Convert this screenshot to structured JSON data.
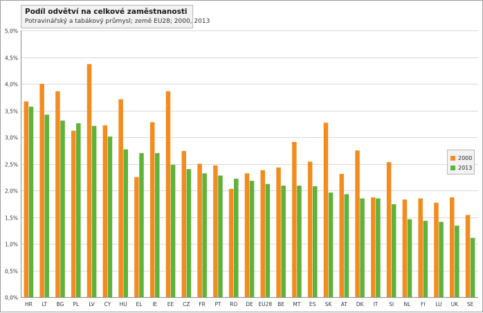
{
  "chart_data": {
    "type": "bar",
    "title": "Podíl odvětví na celkové zaměstnanosti",
    "subtitle": "Potravinářský a tabákový průmysl; země EU28; 2000, 2013",
    "categories": [
      "HR",
      "LT",
      "BG",
      "PL",
      "LV",
      "CY",
      "HU",
      "EL",
      "IE",
      "EE",
      "CZ",
      "FR",
      "PT",
      "RO",
      "DE",
      "EU28",
      "BE",
      "MT",
      "ES",
      "SK",
      "AT",
      "DK",
      "IT",
      "SI",
      "NL",
      "FI",
      "LU",
      "UK",
      "SE"
    ],
    "series": [
      {
        "name": "2000",
        "color": "#f28c1f",
        "values": [
          3.67,
          4.0,
          3.86,
          3.12,
          4.37,
          3.22,
          3.71,
          2.25,
          3.28,
          3.86,
          2.74,
          2.5,
          2.47,
          2.03,
          2.32,
          2.38,
          2.43,
          2.91,
          2.54,
          3.27,
          2.31,
          2.75,
          1.87,
          2.53,
          1.83,
          1.85,
          1.77,
          1.87,
          1.54
        ]
      },
      {
        "name": "2013",
        "color": "#5fb23a",
        "values": [
          3.57,
          3.42,
          3.31,
          3.26,
          3.21,
          3.01,
          2.77,
          2.7,
          2.7,
          2.48,
          2.4,
          2.32,
          2.28,
          2.22,
          2.18,
          2.12,
          2.09,
          2.09,
          2.08,
          1.96,
          1.93,
          1.85,
          1.85,
          1.74,
          1.46,
          1.43,
          1.41,
          1.34,
          1.11
        ]
      }
    ],
    "ylim": [
      0,
      5.0
    ],
    "yticks": [
      0,
      0.5,
      1.0,
      1.5,
      2.0,
      2.5,
      3.0,
      3.5,
      4.0,
      4.5,
      5.0
    ],
    "ytick_labels": [
      "0,0%",
      "0,5%",
      "1,0%",
      "1,5%",
      "2,0%",
      "2,5%",
      "3,0%",
      "3,5%",
      "4,0%",
      "4,5%",
      "5,0%"
    ],
    "grid": true,
    "legend_position": "right"
  }
}
